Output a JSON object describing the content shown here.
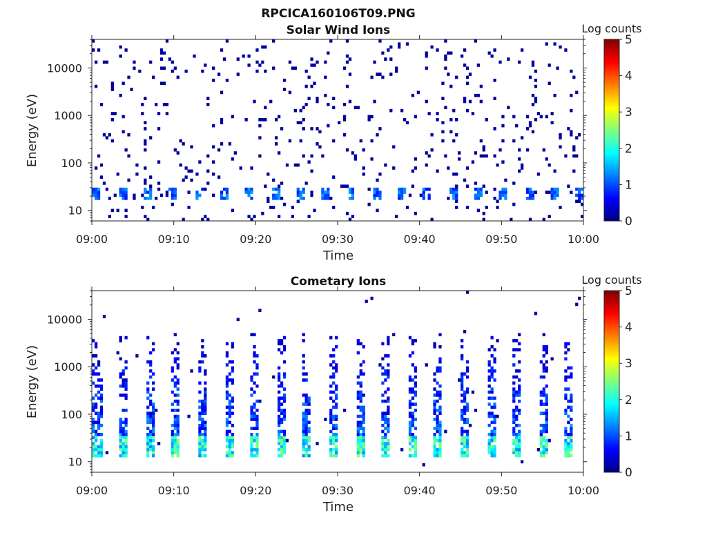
{
  "figure": {
    "title_line1": "RPCICA160106T09.PNG"
  },
  "chart_data": [
    {
      "type": "heatmap",
      "title": "Solar Wind Ions",
      "xlabel": "Time",
      "ylabel": "Energy (eV)",
      "x_range": [
        "09:00",
        "10:00"
      ],
      "x_ticks": [
        "09:00",
        "09:10",
        "09:20",
        "09:30",
        "09:40",
        "09:50",
        "10:00"
      ],
      "y_scale": "log",
      "y_range": [
        6,
        40000
      ],
      "y_ticks": [
        10,
        100,
        1000,
        10000
      ],
      "y_tick_labels": [
        "10",
        "100",
        "1000",
        "10000"
      ],
      "colorbar": {
        "label": "Log counts",
        "range": [
          0,
          5
        ],
        "ticks": [
          0,
          1,
          2,
          3,
          4,
          5
        ],
        "tick_labels": [
          "0",
          "1",
          "2",
          "3",
          "4",
          "5"
        ],
        "colormap": "jet"
      },
      "pattern": {
        "burst_period_minutes": 3.1,
        "burst_count": 20,
        "core_energy_eV": [
          18,
          32
        ],
        "core_log_counts": 1.2,
        "sparse_background_log_counts": 0.1
      }
    },
    {
      "type": "heatmap",
      "title": "Cometary Ions",
      "xlabel": "Time",
      "ylabel": "Energy (eV)",
      "x_range": [
        "09:00",
        "10:00"
      ],
      "x_ticks": [
        "09:00",
        "09:10",
        "09:20",
        "09:30",
        "09:40",
        "09:50",
        "10:00"
      ],
      "y_scale": "log",
      "y_range": [
        6,
        40000
      ],
      "y_ticks": [
        10,
        100,
        1000,
        10000
      ],
      "y_tick_labels": [
        "10",
        "100",
        "1000",
        "10000"
      ],
      "colorbar": {
        "label": "Log counts",
        "range": [
          0,
          5
        ],
        "ticks": [
          0,
          1,
          2,
          3,
          4,
          5
        ],
        "tick_labels": [
          "0",
          "1",
          "2",
          "3",
          "4",
          "5"
        ],
        "colormap": "jet"
      },
      "pattern": {
        "burst_period_minutes": 3.2,
        "burst_count": 19,
        "core_energy_eV": [
          12,
          35
        ],
        "core_log_counts": 2.6,
        "spike_max_energy_eV": 5000,
        "spike_log_counts": 0.8
      }
    }
  ]
}
